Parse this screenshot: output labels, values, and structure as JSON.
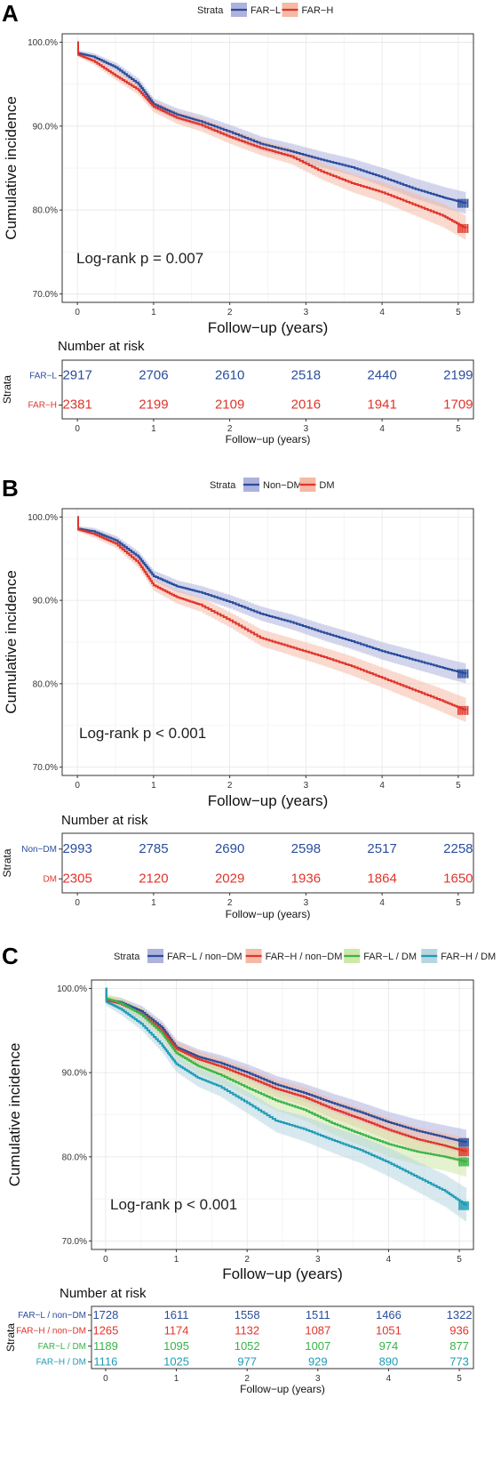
{
  "chart_data": [
    {
      "type": "line",
      "panel_label": "A",
      "legend_title": "Strata",
      "legend_position": "top",
      "ylabel": "Cumulative incidence",
      "xlabel": "Follow−up (years)",
      "x_ticks": [
        "0",
        "1",
        "2",
        "3",
        "4",
        "5"
      ],
      "y_ticks": [
        "70.0%",
        "80.0%",
        "90.0%",
        "100.0%"
      ],
      "xlim": [
        0,
        5.2
      ],
      "ylim": [
        69,
        101
      ],
      "grid": true,
      "annotation": "Log-rank p = 0.007",
      "series": [
        {
          "name": "FAR−L",
          "color": "#2a4d9c",
          "band": "#aeb2dd",
          "x": [
            0,
            0.01,
            0.2,
            0.5,
            0.8,
            1.0,
            1.3,
            1.6,
            2.0,
            2.4,
            2.8,
            3.2,
            3.6,
            4.0,
            4.4,
            4.8,
            5.1
          ],
          "y": [
            100,
            98.7,
            98.3,
            97.0,
            95.0,
            92.6,
            91.4,
            90.6,
            89.3,
            87.9,
            87.0,
            86.0,
            85.1,
            83.9,
            82.6,
            81.5,
            80.8
          ],
          "band_width": [
            0,
            0.3,
            0.4,
            0.5,
            0.6,
            0.65,
            0.7,
            0.75,
            0.8,
            0.85,
            0.9,
            0.95,
            1.0,
            1.1,
            1.2,
            1.25,
            1.3
          ]
        },
        {
          "name": "FAR−H",
          "color": "#e0352b",
          "band": "#f5b9a5",
          "x": [
            0,
            0.01,
            0.2,
            0.5,
            0.8,
            1.0,
            1.3,
            1.6,
            2.0,
            2.4,
            2.8,
            3.2,
            3.6,
            4.0,
            4.4,
            4.8,
            5.1
          ],
          "y": [
            100,
            98.5,
            97.8,
            96.0,
            94.3,
            92.3,
            91.0,
            90.2,
            88.7,
            87.4,
            86.4,
            84.6,
            83.2,
            82.1,
            80.7,
            79.3,
            77.8
          ],
          "band_width": [
            0,
            0.3,
            0.45,
            0.55,
            0.65,
            0.7,
            0.75,
            0.8,
            0.85,
            0.9,
            0.95,
            1.0,
            1.1,
            1.2,
            1.3,
            1.4,
            1.45
          ]
        }
      ],
      "risk_table": {
        "title": "Number at risk",
        "strata_label": "Strata",
        "xlabel": "Follow−up (years)",
        "rows": [
          {
            "name": "FAR−L",
            "color": "#2a4d9c",
            "values": [
              "2917",
              "2706",
              "2610",
              "2518",
              "2440",
              "2199"
            ]
          },
          {
            "name": "FAR−H",
            "color": "#e0352b",
            "values": [
              "2381",
              "2199",
              "2109",
              "2016",
              "1941",
              "1709"
            ]
          }
        ]
      }
    },
    {
      "type": "line",
      "panel_label": "B",
      "legend_title": "Strata",
      "legend_position": "top",
      "ylabel": "Cumulative incidence",
      "xlabel": "Follow−up (years)",
      "x_ticks": [
        "0",
        "1",
        "2",
        "3",
        "4",
        "5"
      ],
      "y_ticks": [
        "70.0%",
        "80.0%",
        "90.0%",
        "100.0%"
      ],
      "xlim": [
        0,
        5.2
      ],
      "ylim": [
        69,
        101
      ],
      "grid": true,
      "annotation": "Log-rank p < 0.001",
      "series": [
        {
          "name": "Non−DM",
          "color": "#2a4d9c",
          "band": "#aeb2dd",
          "x": [
            0,
            0.01,
            0.2,
            0.5,
            0.8,
            1.0,
            1.3,
            1.6,
            2.0,
            2.4,
            2.8,
            3.2,
            3.6,
            4.0,
            4.4,
            4.8,
            5.1
          ],
          "y": [
            100,
            98.6,
            98.3,
            97.2,
            95.2,
            92.9,
            91.7,
            91.0,
            89.8,
            88.4,
            87.4,
            86.2,
            85.1,
            83.9,
            82.9,
            81.9,
            81.2
          ],
          "band_width": [
            0,
            0.3,
            0.4,
            0.5,
            0.6,
            0.65,
            0.7,
            0.75,
            0.8,
            0.85,
            0.9,
            0.95,
            1.0,
            1.05,
            1.1,
            1.15,
            1.2
          ]
        },
        {
          "name": "DM",
          "color": "#e0352b",
          "band": "#f5b9a5",
          "x": [
            0,
            0.01,
            0.2,
            0.5,
            0.8,
            1.0,
            1.3,
            1.6,
            2.0,
            2.4,
            2.8,
            3.2,
            3.6,
            4.0,
            4.4,
            4.8,
            5.1
          ],
          "y": [
            100,
            98.5,
            98.0,
            96.8,
            94.5,
            91.8,
            90.4,
            89.5,
            87.6,
            85.5,
            84.4,
            83.3,
            82.1,
            80.7,
            79.3,
            77.9,
            76.8
          ],
          "band_width": [
            0,
            0.3,
            0.45,
            0.55,
            0.65,
            0.7,
            0.8,
            0.85,
            0.9,
            1.0,
            1.05,
            1.1,
            1.15,
            1.2,
            1.3,
            1.4,
            1.45
          ]
        }
      ],
      "risk_table": {
        "title": "Number at risk",
        "strata_label": "Strata",
        "xlabel": "Follow−up (years)",
        "rows": [
          {
            "name": "Non−DM",
            "color": "#2a4d9c",
            "values": [
              "2993",
              "2785",
              "2690",
              "2598",
              "2517",
              "2258"
            ]
          },
          {
            "name": "DM",
            "color": "#e0352b",
            "values": [
              "2305",
              "2120",
              "2029",
              "1936",
              "1864",
              "1650"
            ]
          }
        ]
      }
    },
    {
      "type": "line",
      "panel_label": "C",
      "legend_title": "Strata",
      "legend_position": "top",
      "ylabel": "Cumulative incidence",
      "xlabel": "Follow−up (years)",
      "x_ticks": [
        "0",
        "1",
        "2",
        "3",
        "4",
        "5"
      ],
      "y_ticks": [
        "70.0%",
        "80.0%",
        "90.0%",
        "100.0%"
      ],
      "xlim": [
        0,
        5.2
      ],
      "ylim": [
        69,
        101
      ],
      "grid": true,
      "annotation": "Log-rank p < 0.001",
      "series": [
        {
          "name": "FAR−L / non−DM",
          "color": "#2a4d9c",
          "band": "#aeb2dd",
          "x": [
            0,
            0.01,
            0.2,
            0.5,
            0.8,
            1.0,
            1.3,
            1.6,
            2.0,
            2.4,
            2.8,
            3.2,
            3.6,
            4.0,
            4.4,
            4.8,
            5.1
          ],
          "y": [
            100,
            98.7,
            98.4,
            97.3,
            95.3,
            93.0,
            91.9,
            91.2,
            90.0,
            88.6,
            87.6,
            86.4,
            85.3,
            84.1,
            83.1,
            82.3,
            81.7
          ],
          "band_width": [
            0,
            0.4,
            0.5,
            0.6,
            0.7,
            0.8,
            0.85,
            0.9,
            0.95,
            1.0,
            1.05,
            1.1,
            1.15,
            1.2,
            1.3,
            1.4,
            1.5
          ]
        },
        {
          "name": "FAR−H / non−DM",
          "color": "#e0352b",
          "band": "#f5b9a5",
          "x": [
            0,
            0.01,
            0.2,
            0.5,
            0.8,
            1.0,
            1.3,
            1.6,
            2.0,
            2.4,
            2.8,
            3.2,
            3.6,
            4.0,
            4.4,
            4.8,
            5.1
          ],
          "y": [
            100,
            98.6,
            98.2,
            97.0,
            94.9,
            92.8,
            91.6,
            90.8,
            89.5,
            88.1,
            87.1,
            85.7,
            84.5,
            83.2,
            82.1,
            81.3,
            80.6
          ],
          "band_width": [
            0,
            0.45,
            0.55,
            0.65,
            0.75,
            0.85,
            0.9,
            0.95,
            1.0,
            1.05,
            1.1,
            1.15,
            1.2,
            1.3,
            1.4,
            1.5,
            1.6
          ]
        },
        {
          "name": "FAR−L / DM",
          "color": "#3bb34a",
          "band": "#cfe7a8",
          "x": [
            0,
            0.01,
            0.2,
            0.5,
            0.8,
            1.0,
            1.3,
            1.6,
            2.0,
            2.4,
            2.8,
            3.2,
            3.6,
            4.0,
            4.4,
            4.8,
            5.1
          ],
          "y": [
            100,
            98.8,
            98.3,
            96.9,
            94.6,
            92.3,
            90.8,
            89.8,
            88.2,
            86.7,
            85.6,
            84.0,
            82.7,
            81.5,
            80.6,
            80.0,
            79.4
          ],
          "band_width": [
            0,
            0.5,
            0.6,
            0.7,
            0.8,
            0.9,
            1.0,
            1.05,
            1.1,
            1.2,
            1.3,
            1.35,
            1.4,
            1.5,
            1.6,
            1.7,
            1.8
          ]
        },
        {
          "name": "FAR−H / DM",
          "color": "#1f9cb5",
          "band": "#b7d6e0",
          "x": [
            0,
            0.01,
            0.2,
            0.5,
            0.8,
            1.0,
            1.3,
            1.6,
            2.0,
            2.4,
            2.8,
            3.2,
            3.6,
            4.0,
            4.4,
            4.8,
            5.1
          ],
          "y": [
            100,
            98.4,
            97.6,
            95.8,
            93.2,
            91.0,
            89.4,
            88.4,
            86.4,
            84.3,
            83.3,
            82.0,
            80.8,
            79.3,
            77.6,
            75.9,
            74.2
          ],
          "band_width": [
            0,
            0.5,
            0.7,
            0.8,
            0.9,
            1.0,
            1.1,
            1.2,
            1.3,
            1.4,
            1.5,
            1.55,
            1.6,
            1.7,
            1.8,
            1.9,
            2.0
          ]
        }
      ],
      "risk_table": {
        "title": "Number at risk",
        "strata_label": "Strata",
        "xlabel": "Follow−up (years)",
        "rows": [
          {
            "name": "FAR−L / non−DM",
            "color": "#2a4d9c",
            "values": [
              "1728",
              "1611",
              "1558",
              "1511",
              "1466",
              "1322"
            ]
          },
          {
            "name": "FAR−H / non−DM",
            "color": "#e0352b",
            "values": [
              "1265",
              "1174",
              "1132",
              "1087",
              "1051",
              "936"
            ]
          },
          {
            "name": "FAR−L / DM",
            "color": "#3bb34a",
            "values": [
              "1189",
              "1095",
              "1052",
              "1007",
              "974",
              "877"
            ]
          },
          {
            "name": "FAR−H / DM",
            "color": "#1f9cb5",
            "values": [
              "1116",
              "1025",
              "977",
              "929",
              "890",
              "773"
            ]
          }
        ]
      }
    }
  ]
}
